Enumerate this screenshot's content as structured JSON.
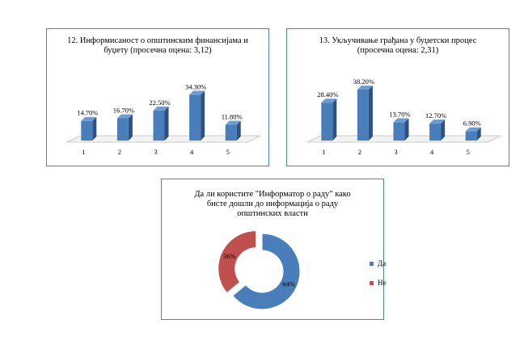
{
  "colors": {
    "bar_front": "#4a7ebb",
    "bar_side": "#2c5282",
    "bar_top": "#6f9bd3",
    "pie_yes": "#4a7ebb",
    "pie_no": "#c0504d",
    "border": "#4f81bd"
  },
  "chart_data": [
    {
      "type": "bar",
      "title_lines": [
        "12. Информисаност о општинским финансијама и",
        "буџету (просечна оцена: 3,12)"
      ],
      "categories": [
        "1",
        "2",
        "3",
        "4",
        "5"
      ],
      "values": [
        14.7,
        16.7,
        22.5,
        34.3,
        11.8
      ],
      "labels": [
        "14.70%",
        "16.70%",
        "22.50%",
        "34.30%",
        "11.80%"
      ]
    },
    {
      "type": "bar",
      "title_lines": [
        "13. Укључивање грађана у буџетски процес",
        "(просечна оцена: 2,31)"
      ],
      "categories": [
        "1",
        "2",
        "3",
        "4",
        "5"
      ],
      "values": [
        28.4,
        38.2,
        13.7,
        12.7,
        6.9
      ],
      "labels": [
        "28.40%",
        "38.20%",
        "13.70%",
        "12.70%",
        "6.90%"
      ]
    },
    {
      "type": "pie",
      "title_lines": [
        "Да ли користите \"Информатор о раду\" како",
        "бисте дошли до информација о раду",
        "општинских власти"
      ],
      "categories": [
        "Да",
        "Не"
      ],
      "values": [
        64,
        36
      ],
      "labels": [
        "64%",
        "36%"
      ],
      "legend": [
        "Да",
        "Не"
      ],
      "legend_position": "right"
    }
  ]
}
